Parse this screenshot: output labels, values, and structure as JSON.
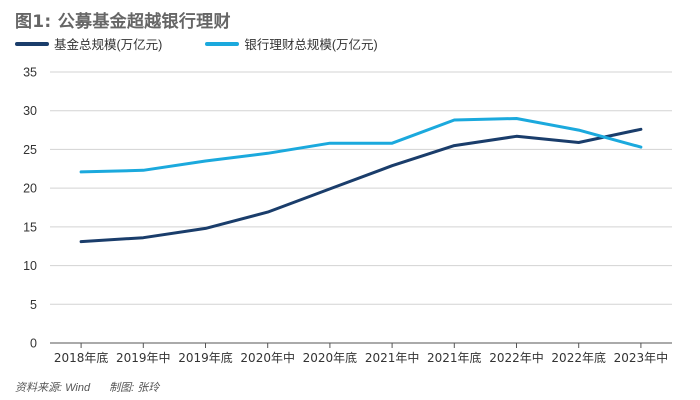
{
  "title": "图1: 公募基金超越银行理财",
  "source": {
    "left": "资料来源: Wind",
    "right": "制图: 张玲"
  },
  "colors": {
    "series1": "#1a3d6b",
    "series2": "#1ba9dd",
    "grid": "#d3d3d3",
    "axis": "#555555"
  },
  "chart_data": {
    "type": "line",
    "categories": [
      "2018年底",
      "2019年中",
      "2019年底",
      "2020年中",
      "2020年底",
      "2021年中",
      "2021年底",
      "2022年中",
      "2022年底",
      "2023年中"
    ],
    "series": [
      {
        "name": "基金总规模(万亿元)",
        "values": [
          13.1,
          13.6,
          14.8,
          16.9,
          19.9,
          22.9,
          25.5,
          26.7,
          25.9,
          27.6
        ]
      },
      {
        "name": "银行理财总规模(万亿元)",
        "values": [
          22.1,
          22.3,
          23.5,
          24.5,
          25.8,
          25.8,
          28.8,
          29.0,
          27.5,
          25.3
        ]
      }
    ],
    "ylim": [
      0,
      35
    ],
    "yticks": [
      0,
      5,
      10,
      15,
      20,
      25,
      30,
      35
    ],
    "grid": true,
    "legend": "top-left",
    "xlabel": "",
    "ylabel": ""
  }
}
